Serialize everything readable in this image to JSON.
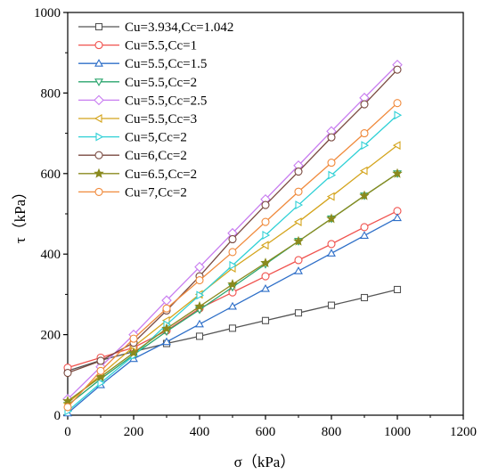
{
  "chart_data": {
    "type": "line",
    "xlabel": "σ（kPa）",
    "ylabel": "τ（kPa）",
    "xlim": [
      0,
      1200
    ],
    "ylim": [
      0,
      1000
    ],
    "xticks": [
      0,
      200,
      400,
      600,
      800,
      1000,
      1200
    ],
    "yticks": [
      0,
      200,
      400,
      600,
      800,
      1000
    ],
    "grid": false,
    "legend_position": "top-left",
    "x": [
      0,
      100,
      200,
      300,
      400,
      500,
      600,
      700,
      800,
      900,
      1000
    ],
    "series": [
      {
        "name": "Cu=3.934,Cc=1.042",
        "color": "#555555",
        "marker": "square",
        "values": [
          110,
          136,
          158,
          178,
          196,
          216,
          235,
          254,
          273,
          292,
          312
        ]
      },
      {
        "name": "Cu=5.5,Cc=1",
        "color": "#f0524e",
        "marker": "circle",
        "values": [
          118,
          143,
          168,
          210,
          265,
          305,
          345,
          385,
          425,
          467,
          507
        ]
      },
      {
        "name": "Cu=5.5,Cc=1.5",
        "color": "#2e6fc8",
        "marker": "triangle-up",
        "values": [
          5,
          75,
          140,
          182,
          226,
          270,
          314,
          358,
          402,
          446,
          490
        ]
      },
      {
        "name": "Cu=5.5,Cc=2",
        "color": "#2aa56d",
        "marker": "triangle-down",
        "values": [
          25,
          90,
          150,
          208,
          262,
          318,
          375,
          432,
          488,
          545,
          600
        ]
      },
      {
        "name": "Cu=5.5,Cc=2.5",
        "color": "#c87cf0",
        "marker": "diamond",
        "values": [
          40,
          120,
          200,
          285,
          368,
          452,
          536,
          620,
          705,
          788,
          870
        ]
      },
      {
        "name": "Cu=5.5,Cc=3",
        "color": "#d4a41c",
        "marker": "triangle-left",
        "values": [
          30,
          100,
          170,
          235,
          300,
          365,
          422,
          480,
          543,
          607,
          670
        ]
      },
      {
        "name": "Cu=5,Cc=2",
        "color": "#2fd0d6",
        "marker": "triangle-right",
        "values": [
          10,
          80,
          148,
          225,
          298,
          372,
          447,
          522,
          596,
          670,
          745
        ]
      },
      {
        "name": "Cu=6,Cc=2",
        "color": "#7a4a40",
        "marker": "circle",
        "values": [
          105,
          135,
          180,
          260,
          345,
          437,
          522,
          605,
          690,
          772,
          858
        ]
      },
      {
        "name": "Cu=6.5,Cc=2",
        "color": "#8a8a1e",
        "marker": "star",
        "values": [
          35,
          95,
          155,
          215,
          270,
          325,
          378,
          432,
          488,
          545,
          600
        ]
      },
      {
        "name": "Cu=7,Cc=2",
        "color": "#f08a3c",
        "marker": "circle",
        "values": [
          20,
          110,
          190,
          265,
          335,
          405,
          480,
          555,
          627,
          700,
          775
        ]
      }
    ]
  }
}
